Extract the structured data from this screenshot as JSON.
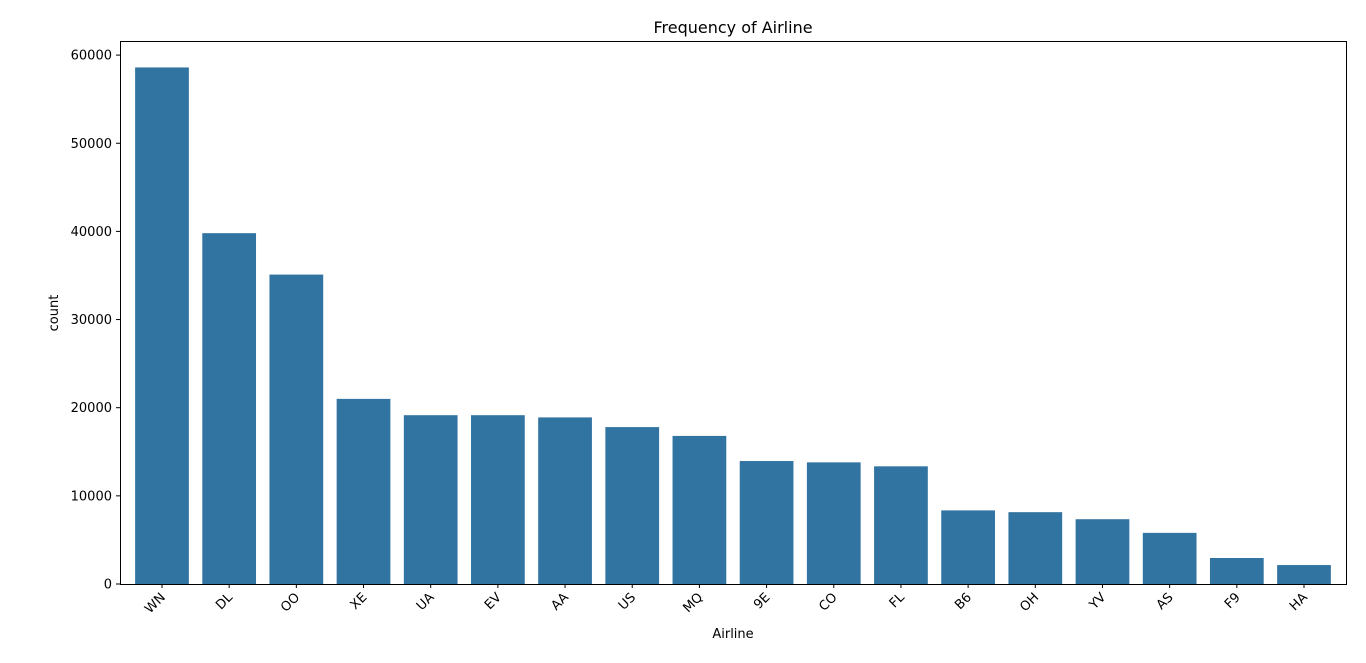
{
  "chart_data": {
    "type": "bar",
    "title": "Frequency of Airline",
    "xlabel": "Airline",
    "ylabel": "count",
    "categories": [
      "WN",
      "DL",
      "OO",
      "XE",
      "UA",
      "EV",
      "AA",
      "US",
      "MQ",
      "9E",
      "CO",
      "FL",
      "B6",
      "OH",
      "YV",
      "AS",
      "F9",
      "HA"
    ],
    "values": [
      58600,
      39800,
      35100,
      21000,
      19150,
      19150,
      18900,
      17800,
      16800,
      13950,
      13800,
      13350,
      8350,
      8150,
      7350,
      5800,
      2950,
      2150
    ],
    "ylim": [
      0,
      61600
    ],
    "yticks": [
      0,
      10000,
      20000,
      30000,
      40000,
      50000,
      60000
    ],
    "grid": false,
    "legend": "none",
    "bar_color": "#3274a1",
    "xtick_rotation": 45
  }
}
